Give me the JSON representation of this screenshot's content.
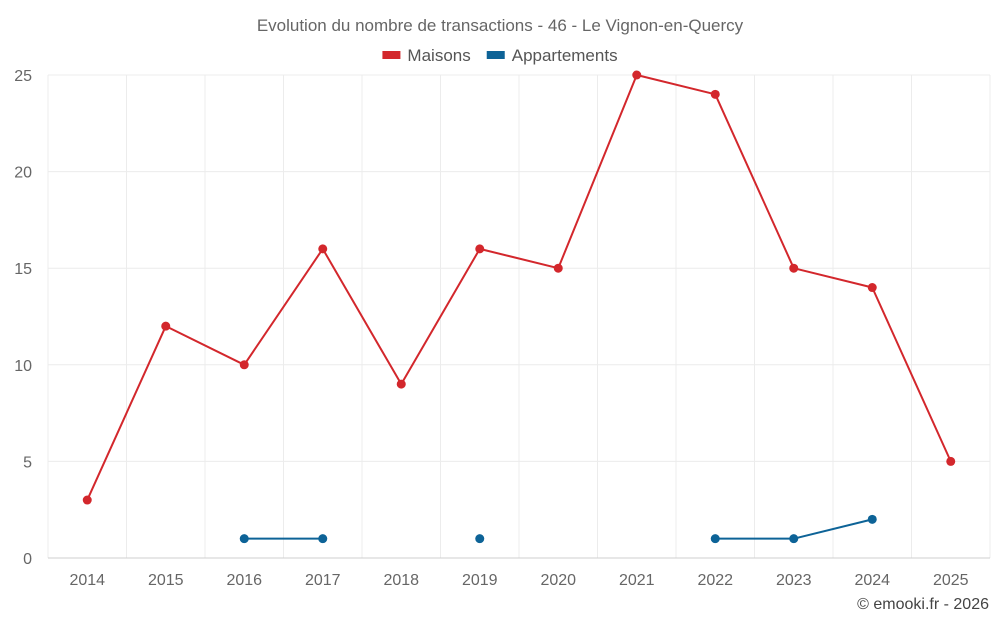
{
  "chart_data": {
    "type": "line",
    "title": "Evolution du nombre de transactions - 46 - Le Vignon-en-Quercy",
    "categories": [
      "2014",
      "2015",
      "2016",
      "2017",
      "2018",
      "2019",
      "2020",
      "2021",
      "2022",
      "2023",
      "2024",
      "2025"
    ],
    "series": [
      {
        "name": "Maisons",
        "color": "#d3272c",
        "values": [
          3,
          12,
          10,
          16,
          9,
          16,
          15,
          25,
          24,
          15,
          14,
          5
        ]
      },
      {
        "name": "Appartements",
        "color": "#0d6397",
        "values": [
          null,
          null,
          1,
          1,
          null,
          1,
          null,
          null,
          1,
          1,
          2,
          null
        ]
      }
    ],
    "ylim": [
      0,
      25
    ],
    "yticks": [
      0,
      5,
      10,
      15,
      20,
      25
    ],
    "grid": true,
    "legend": "top-center",
    "xlabel": "",
    "ylabel": ""
  },
  "footer": {
    "credit": "© emooki.fr - 2026"
  }
}
